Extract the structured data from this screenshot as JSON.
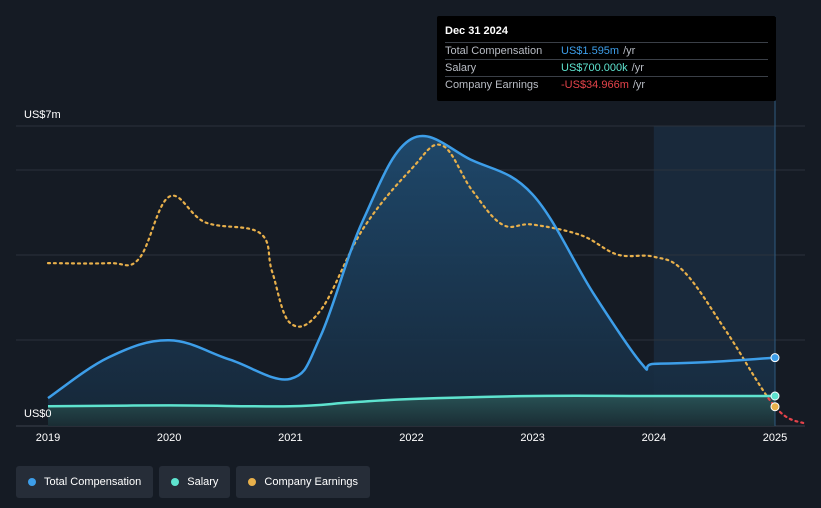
{
  "tooltip": {
    "date": "Dec 31 2024",
    "rows": [
      {
        "label": "Total Compensation",
        "value": "US$1.595m",
        "unit": "/yr",
        "color": "#3d9ee9"
      },
      {
        "label": "Salary",
        "value": "US$700.000k",
        "unit": "/yr",
        "color": "#5ee3cf"
      },
      {
        "label": "Company Earnings",
        "value": "-US$34.966m",
        "unit": "/yr",
        "color": "#e5434a"
      }
    ]
  },
  "colors": {
    "background": "#151b24",
    "total_compensation": "#3d9ee9",
    "salary": "#5ee3cf",
    "earnings": "#e8b04b",
    "earnings_negative": "#e5434a",
    "grid": "#2b323d"
  },
  "legend": [
    {
      "label": "Total Compensation",
      "color": "#3d9ee9"
    },
    {
      "label": "Salary",
      "color": "#5ee3cf"
    },
    {
      "label": "Company Earnings",
      "color": "#e8b04b"
    }
  ],
  "chart_data": {
    "type": "area",
    "y_top_label": "US$7m",
    "y_bottom_label": "US$0",
    "ylim": [
      0,
      7
    ],
    "xlim": [
      2019.0,
      2025.25
    ],
    "x_ticks": [
      "2019",
      "2020",
      "2021",
      "2022",
      "2023",
      "2024",
      "2025"
    ],
    "highlight_range": [
      2024.0,
      2025.0
    ],
    "grid": true,
    "legend_position": "bottom-left",
    "series": [
      {
        "name": "Total Compensation",
        "style": "area",
        "points": [
          [
            2019.0,
            0.65
          ],
          [
            2019.5,
            1.6
          ],
          [
            2020.0,
            2.0
          ],
          [
            2020.5,
            1.55
          ],
          [
            2021.0,
            1.1
          ],
          [
            2021.25,
            2.1
          ],
          [
            2021.6,
            4.8
          ],
          [
            2022.0,
            6.7
          ],
          [
            2022.5,
            6.2
          ],
          [
            2023.0,
            5.4
          ],
          [
            2023.5,
            3.1
          ],
          [
            2023.9,
            1.45
          ],
          [
            2024.0,
            1.45
          ],
          [
            2024.5,
            1.5
          ],
          [
            2025.0,
            1.595
          ]
        ]
      },
      {
        "name": "Salary",
        "style": "area",
        "points": [
          [
            2019.0,
            0.46
          ],
          [
            2020.0,
            0.48
          ],
          [
            2021.0,
            0.46
          ],
          [
            2021.5,
            0.55
          ],
          [
            2022.0,
            0.63
          ],
          [
            2023.0,
            0.7
          ],
          [
            2024.0,
            0.7
          ],
          [
            2025.0,
            0.7
          ]
        ]
      },
      {
        "name": "Company Earnings",
        "style": "dotted",
        "points": [
          [
            2019.0,
            3.8
          ],
          [
            2019.5,
            3.8
          ],
          [
            2019.75,
            3.9
          ],
          [
            2020.0,
            5.35
          ],
          [
            2020.3,
            4.75
          ],
          [
            2020.75,
            4.5
          ],
          [
            2020.85,
            3.6
          ],
          [
            2021.0,
            2.4
          ],
          [
            2021.25,
            2.7
          ],
          [
            2021.6,
            4.6
          ],
          [
            2022.0,
            6.0
          ],
          [
            2022.25,
            6.55
          ],
          [
            2022.5,
            5.5
          ],
          [
            2022.75,
            4.7
          ],
          [
            2023.0,
            4.7
          ],
          [
            2023.4,
            4.45
          ],
          [
            2023.7,
            4.0
          ],
          [
            2024.0,
            3.95
          ],
          [
            2024.25,
            3.6
          ],
          [
            2024.6,
            2.2
          ],
          [
            2025.0,
            0.45
          ],
          [
            2025.25,
            0.05
          ]
        ]
      }
    ],
    "markers": [
      {
        "name": "Total Compensation",
        "x": 2025.0,
        "y": 1.595
      },
      {
        "name": "Salary",
        "x": 2025.0,
        "y": 0.7
      },
      {
        "name": "Company Earnings",
        "x": 2025.0,
        "y": 0.45
      }
    ]
  }
}
